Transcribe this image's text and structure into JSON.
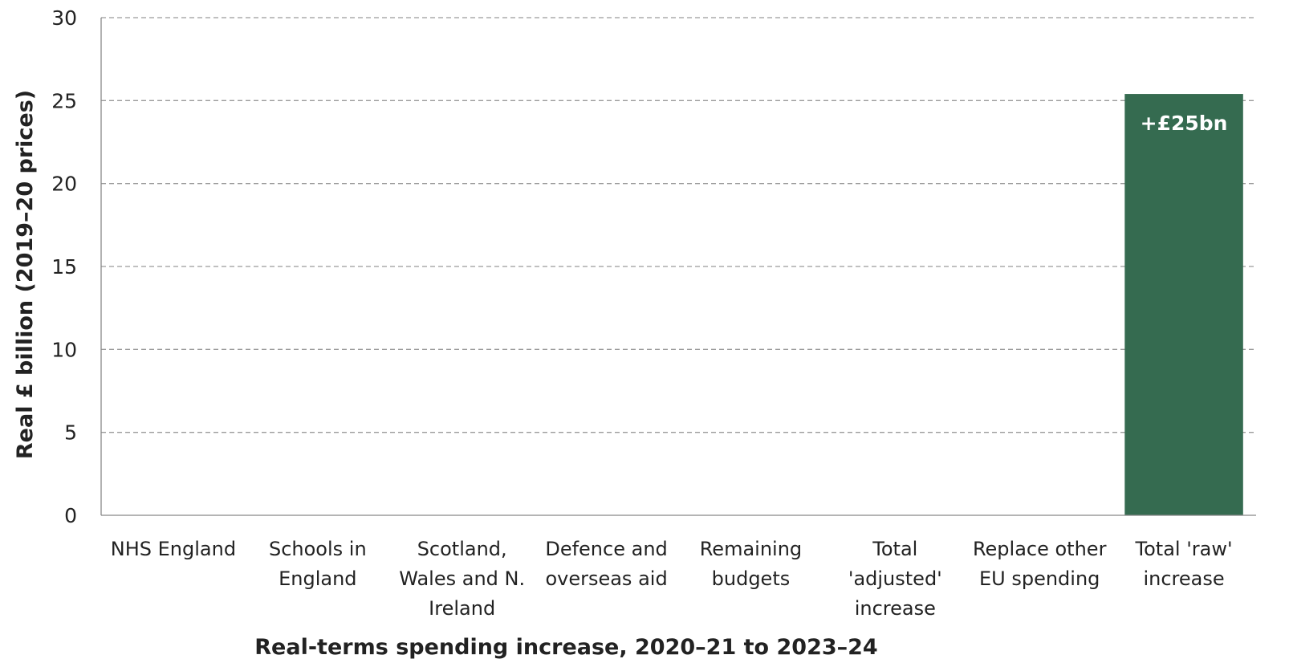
{
  "chart_data": {
    "type": "bar",
    "categories": [
      [
        "NHS England"
      ],
      [
        "Schools in",
        "England"
      ],
      [
        "Scotland,",
        "Wales and N.",
        "Ireland"
      ],
      [
        "Defence and",
        "overseas aid"
      ],
      [
        "Remaining",
        "budgets"
      ],
      [
        "Total",
        "'adjusted'",
        "increase"
      ],
      [
        "Replace other",
        "EU spending"
      ],
      [
        "Total 'raw'",
        "increase"
      ]
    ],
    "values": [
      null,
      null,
      null,
      null,
      null,
      null,
      null,
      25.4
    ],
    "data_labels": [
      "",
      "",
      "",
      "",
      "",
      "",
      "",
      "+£25bn"
    ],
    "xlabel": "Real-terms spending increase, 2020–21 to 2023–24",
    "ylabel": "Real £ billion  (2019–20 prices)",
    "ylim": [
      0,
      30
    ],
    "yticks": [
      0,
      5,
      10,
      15,
      20,
      25,
      30
    ],
    "grid": true,
    "colors": {
      "bar": "#356b50",
      "grid": "#9a9a9a",
      "axis": "#888888",
      "text": "#222222"
    }
  }
}
